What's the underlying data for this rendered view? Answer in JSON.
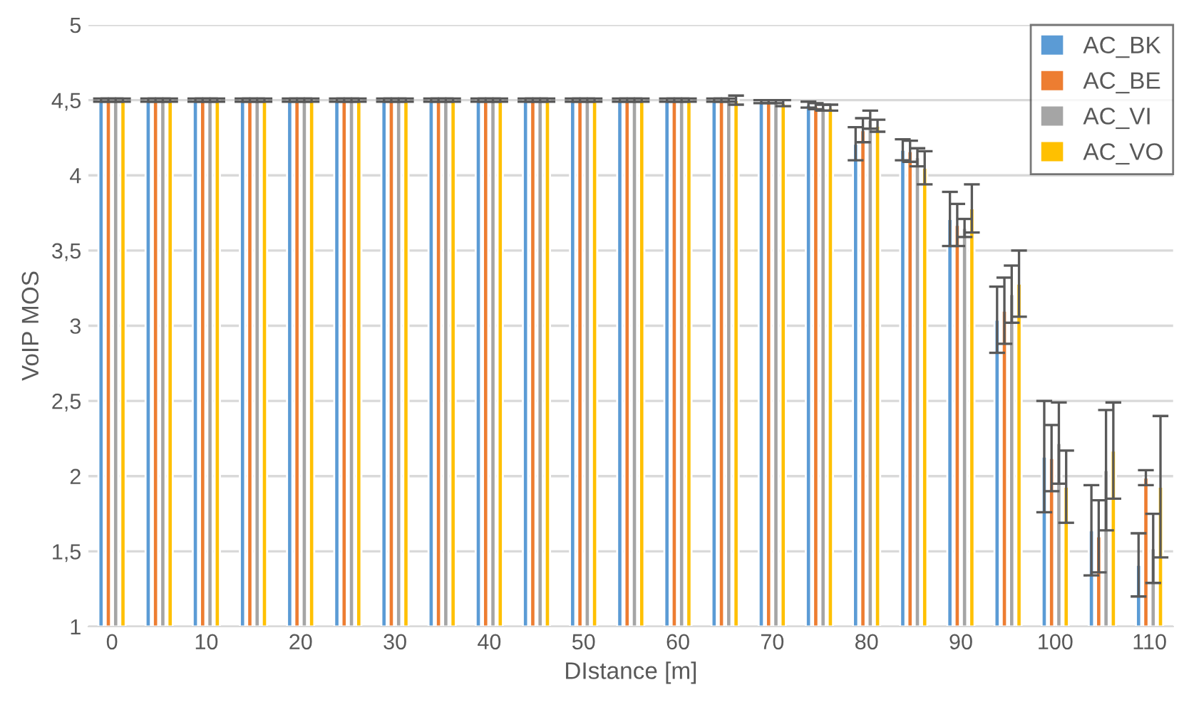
{
  "chart_data": {
    "type": "bar",
    "xlabel": "DIstance [m]",
    "ylabel": "VoIP MOS",
    "categories": [
      "0",
      null,
      "10",
      null,
      "20",
      null,
      "30",
      null,
      "40",
      null,
      "50",
      null,
      "60",
      null,
      "70",
      null,
      "80",
      null,
      "90",
      null,
      "100",
      null,
      "110"
    ],
    "series": [
      {
        "name": "AC_BK",
        "color": "#5b9bd5",
        "values": [
          4.5,
          4.5,
          4.5,
          4.5,
          4.5,
          4.5,
          4.5,
          4.5,
          4.5,
          4.5,
          4.5,
          4.5,
          4.5,
          4.5,
          4.49,
          4.47,
          4.21,
          4.17,
          3.71,
          3.04,
          2.13,
          1.64,
          1.41
        ],
        "errors": [
          0.01,
          0.01,
          0.01,
          0.01,
          0.01,
          0.01,
          0.01,
          0.01,
          0.01,
          0.01,
          0.01,
          0.01,
          0.01,
          0.01,
          0.01,
          0.02,
          0.11,
          0.07,
          0.18,
          0.22,
          0.37,
          0.3,
          0.21
        ]
      },
      {
        "name": "AC_BE",
        "color": "#ed7d31",
        "values": [
          4.5,
          4.5,
          4.5,
          4.5,
          4.5,
          4.5,
          4.5,
          4.5,
          4.5,
          4.5,
          4.5,
          4.5,
          4.5,
          4.5,
          4.49,
          4.46,
          4.3,
          4.16,
          3.67,
          3.1,
          2.12,
          1.6,
          1.99
        ],
        "errors": [
          0.01,
          0.01,
          0.01,
          0.01,
          0.01,
          0.01,
          0.01,
          0.01,
          0.01,
          0.01,
          0.01,
          0.01,
          0.01,
          0.01,
          0.01,
          0.02,
          0.08,
          0.07,
          0.14,
          0.22,
          0.22,
          0.24,
          0.05
        ]
      },
      {
        "name": "AC_VI",
        "color": "#a5a5a5",
        "values": [
          4.5,
          4.5,
          4.5,
          4.5,
          4.5,
          4.5,
          4.5,
          4.5,
          4.5,
          4.5,
          4.5,
          4.5,
          4.5,
          4.5,
          4.49,
          4.45,
          4.37,
          4.12,
          3.65,
          3.21,
          2.22,
          2.04,
          1.52
        ],
        "errors": [
          0.01,
          0.01,
          0.01,
          0.01,
          0.01,
          0.01,
          0.01,
          0.01,
          0.01,
          0.01,
          0.01,
          0.01,
          0.01,
          0.01,
          0.01,
          0.02,
          0.06,
          0.06,
          0.06,
          0.19,
          0.27,
          0.4,
          0.23
        ]
      },
      {
        "name": "AC_VO",
        "color": "#ffc000",
        "values": [
          4.5,
          4.5,
          4.5,
          4.5,
          4.5,
          4.5,
          4.5,
          4.5,
          4.5,
          4.5,
          4.5,
          4.5,
          4.5,
          4.5,
          4.48,
          4.45,
          4.33,
          4.05,
          3.78,
          3.28,
          1.93,
          2.17,
          1.93
        ],
        "errors": [
          0.01,
          0.01,
          0.01,
          0.01,
          0.01,
          0.01,
          0.01,
          0.01,
          0.01,
          0.01,
          0.01,
          0.01,
          0.01,
          0.03,
          0.02,
          0.02,
          0.04,
          0.11,
          0.16,
          0.22,
          0.24,
          0.32,
          0.47
        ]
      }
    ],
    "ylim": [
      1,
      5
    ],
    "yticks": [
      1,
      {
        "value": 1.5,
        "label": "1,5"
      },
      2,
      {
        "value": 2.5,
        "label": "2,5"
      },
      3,
      {
        "value": 3.5,
        "label": "3,5"
      },
      4,
      {
        "value": 4.5,
        "label": "4,5"
      },
      5
    ],
    "grid": "y",
    "legend": "top right"
  }
}
